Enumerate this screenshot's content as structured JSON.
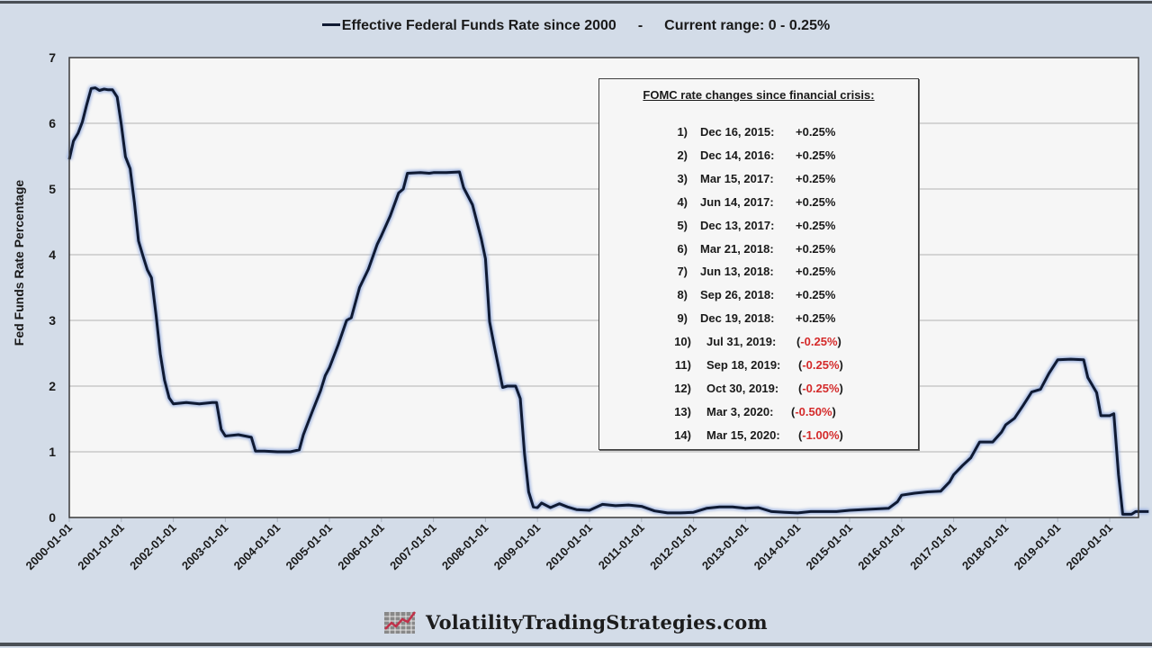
{
  "header": {
    "legend_label": "Effective Federal Funds Rate since 2000",
    "separator": "-",
    "current_range": "Current range:  0 - 0.25%"
  },
  "footer": {
    "brand": "VolatilityTradingStrategies.com",
    "logo_icon": "chart-grid-icon"
  },
  "colors": {
    "background": "#d3dce8",
    "plot_bg": "#f6f6f6",
    "line": "#0f1a33",
    "line_glow": "#9fb4e0",
    "negative": "#d42a2a",
    "grid": "#c8c8c8"
  },
  "infobox": {
    "title": "FOMC rate changes since financial crisis:",
    "items": [
      {
        "num": "1)",
        "date": "Dec 16, 2015:",
        "change": "+0.25%",
        "negative": false
      },
      {
        "num": "2)",
        "date": "Dec 14, 2016:",
        "change": "+0.25%",
        "negative": false
      },
      {
        "num": "3)",
        "date": "Mar 15, 2017:",
        "change": "+0.25%",
        "negative": false
      },
      {
        "num": "4)",
        "date": "Jun 14, 2017:",
        "change": "+0.25%",
        "negative": false
      },
      {
        "num": "5)",
        "date": "Dec 13, 2017:",
        "change": "+0.25%",
        "negative": false
      },
      {
        "num": "6)",
        "date": "Mar 21, 2018:",
        "change": "+0.25%",
        "negative": false
      },
      {
        "num": "7)",
        "date": "Jun 13, 2018:",
        "change": "+0.25%",
        "negative": false
      },
      {
        "num": "8)",
        "date": "Sep 26, 2018:",
        "change": "+0.25%",
        "negative": false
      },
      {
        "num": "9)",
        "date": "Dec 19, 2018:",
        "change": "+0.25%",
        "negative": false
      },
      {
        "num": "10)",
        "date": "Jul 31, 2019:",
        "change": "-0.25%",
        "negative": true
      },
      {
        "num": "11)",
        "date": "Sep 18, 2019:",
        "change": "-0.25%",
        "negative": true
      },
      {
        "num": "12)",
        "date": "Oct 30, 2019:",
        "change": "-0.25%",
        "negative": true
      },
      {
        "num": "13)",
        "date": "Mar 3, 2020:",
        "change": "-0.50%",
        "negative": true
      },
      {
        "num": "14)",
        "date": "Mar 15, 2020:",
        "change": "-1.00%",
        "negative": true
      }
    ]
  },
  "chart_data": {
    "type": "line",
    "title": "Effective Federal Funds Rate since 2000  -  Current range: 0 - 0.25%",
    "xlabel": "",
    "ylabel": "Fed Funds Rate Percentage",
    "ylim": [
      0,
      7
    ],
    "xlim": [
      2000.0,
      2020.75
    ],
    "yticks": [
      "0",
      "1",
      "2",
      "3",
      "4",
      "5",
      "6",
      "7"
    ],
    "xticks": [
      "2000-01-01",
      "2001-01-01",
      "2002-01-01",
      "2003-01-01",
      "2004-01-01",
      "2005-01-01",
      "2006-01-01",
      "2007-01-01",
      "2008-01-01",
      "2009-01-01",
      "2010-01-01",
      "2011-01-01",
      "2012-01-01",
      "2013-01-01",
      "2014-01-01",
      "2015-01-01",
      "2016-01-01",
      "2017-01-01",
      "2018-01-01",
      "2019-01-01",
      "2020-01-01"
    ],
    "grid": "horizontal",
    "legend_position": "top",
    "series": [
      {
        "name": "Effective Federal Funds Rate",
        "points": [
          [
            2000.0,
            5.45
          ],
          [
            2000.08,
            5.73
          ],
          [
            2000.17,
            5.85
          ],
          [
            2000.25,
            6.02
          ],
          [
            2000.33,
            6.27
          ],
          [
            2000.42,
            6.53
          ],
          [
            2000.5,
            6.54
          ],
          [
            2000.58,
            6.5
          ],
          [
            2000.67,
            6.52
          ],
          [
            2000.75,
            6.51
          ],
          [
            2000.83,
            6.51
          ],
          [
            2000.92,
            6.4
          ],
          [
            2001.0,
            5.98
          ],
          [
            2001.08,
            5.49
          ],
          [
            2001.17,
            5.31
          ],
          [
            2001.25,
            4.8
          ],
          [
            2001.33,
            4.21
          ],
          [
            2001.42,
            3.97
          ],
          [
            2001.5,
            3.77
          ],
          [
            2001.58,
            3.65
          ],
          [
            2001.67,
            3.07
          ],
          [
            2001.75,
            2.49
          ],
          [
            2001.83,
            2.09
          ],
          [
            2001.92,
            1.82
          ],
          [
            2002.0,
            1.73
          ],
          [
            2002.25,
            1.75
          ],
          [
            2002.5,
            1.73
          ],
          [
            2002.75,
            1.75
          ],
          [
            2002.83,
            1.75
          ],
          [
            2002.92,
            1.34
          ],
          [
            2003.0,
            1.24
          ],
          [
            2003.25,
            1.26
          ],
          [
            2003.5,
            1.22
          ],
          [
            2003.58,
            1.01
          ],
          [
            2003.75,
            1.01
          ],
          [
            2004.0,
            1.0
          ],
          [
            2004.25,
            1.0
          ],
          [
            2004.42,
            1.03
          ],
          [
            2004.5,
            1.26
          ],
          [
            2004.67,
            1.61
          ],
          [
            2004.83,
            1.93
          ],
          [
            2004.92,
            2.16
          ],
          [
            2005.0,
            2.28
          ],
          [
            2005.17,
            2.63
          ],
          [
            2005.33,
            3.0
          ],
          [
            2005.42,
            3.04
          ],
          [
            2005.58,
            3.5
          ],
          [
            2005.75,
            3.78
          ],
          [
            2005.92,
            4.16
          ],
          [
            2006.0,
            4.29
          ],
          [
            2006.17,
            4.59
          ],
          [
            2006.33,
            4.94
          ],
          [
            2006.42,
            5.0
          ],
          [
            2006.5,
            5.24
          ],
          [
            2006.75,
            5.25
          ],
          [
            2006.92,
            5.24
          ],
          [
            2007.0,
            5.25
          ],
          [
            2007.25,
            5.25
          ],
          [
            2007.5,
            5.26
          ],
          [
            2007.58,
            5.02
          ],
          [
            2007.75,
            4.76
          ],
          [
            2007.92,
            4.24
          ],
          [
            2008.0,
            3.94
          ],
          [
            2008.08,
            2.98
          ],
          [
            2008.17,
            2.61
          ],
          [
            2008.33,
            1.98
          ],
          [
            2008.42,
            2.0
          ],
          [
            2008.58,
            2.0
          ],
          [
            2008.67,
            1.81
          ],
          [
            2008.75,
            0.97
          ],
          [
            2008.83,
            0.39
          ],
          [
            2008.92,
            0.16
          ],
          [
            2009.0,
            0.15
          ],
          [
            2009.08,
            0.22
          ],
          [
            2009.25,
            0.15
          ],
          [
            2009.42,
            0.21
          ],
          [
            2009.58,
            0.16
          ],
          [
            2009.75,
            0.12
          ],
          [
            2010.0,
            0.11
          ],
          [
            2010.25,
            0.2
          ],
          [
            2010.5,
            0.18
          ],
          [
            2010.75,
            0.19
          ],
          [
            2011.0,
            0.17
          ],
          [
            2011.25,
            0.1
          ],
          [
            2011.5,
            0.07
          ],
          [
            2011.75,
            0.07
          ],
          [
            2012.0,
            0.08
          ],
          [
            2012.25,
            0.14
          ],
          [
            2012.5,
            0.16
          ],
          [
            2012.75,
            0.16
          ],
          [
            2013.0,
            0.14
          ],
          [
            2013.25,
            0.15
          ],
          [
            2013.5,
            0.09
          ],
          [
            2013.75,
            0.08
          ],
          [
            2014.0,
            0.07
          ],
          [
            2014.25,
            0.09
          ],
          [
            2014.5,
            0.09
          ],
          [
            2014.75,
            0.09
          ],
          [
            2015.0,
            0.11
          ],
          [
            2015.25,
            0.12
          ],
          [
            2015.5,
            0.13
          ],
          [
            2015.75,
            0.14
          ],
          [
            2015.92,
            0.24
          ],
          [
            2016.0,
            0.34
          ],
          [
            2016.25,
            0.37
          ],
          [
            2016.5,
            0.39
          ],
          [
            2016.75,
            0.4
          ],
          [
            2016.92,
            0.54
          ],
          [
            2017.0,
            0.65
          ],
          [
            2017.17,
            0.79
          ],
          [
            2017.33,
            0.91
          ],
          [
            2017.5,
            1.15
          ],
          [
            2017.75,
            1.15
          ],
          [
            2017.92,
            1.3
          ],
          [
            2018.0,
            1.41
          ],
          [
            2018.17,
            1.51
          ],
          [
            2018.33,
            1.7
          ],
          [
            2018.5,
            1.91
          ],
          [
            2018.67,
            1.95
          ],
          [
            2018.83,
            2.19
          ],
          [
            2019.0,
            2.4
          ],
          [
            2019.25,
            2.41
          ],
          [
            2019.5,
            2.4
          ],
          [
            2019.58,
            2.13
          ],
          [
            2019.75,
            1.9
          ],
          [
            2019.83,
            1.55
          ],
          [
            2020.0,
            1.55
          ],
          [
            2020.08,
            1.58
          ],
          [
            2020.17,
            0.65
          ],
          [
            2020.25,
            0.05
          ],
          [
            2020.42,
            0.05
          ],
          [
            2020.5,
            0.09
          ],
          [
            2020.75,
            0.09
          ]
        ]
      }
    ],
    "annotations": [
      "FOMC rate changes since financial crisis: 14 entries (see infobox)"
    ]
  }
}
